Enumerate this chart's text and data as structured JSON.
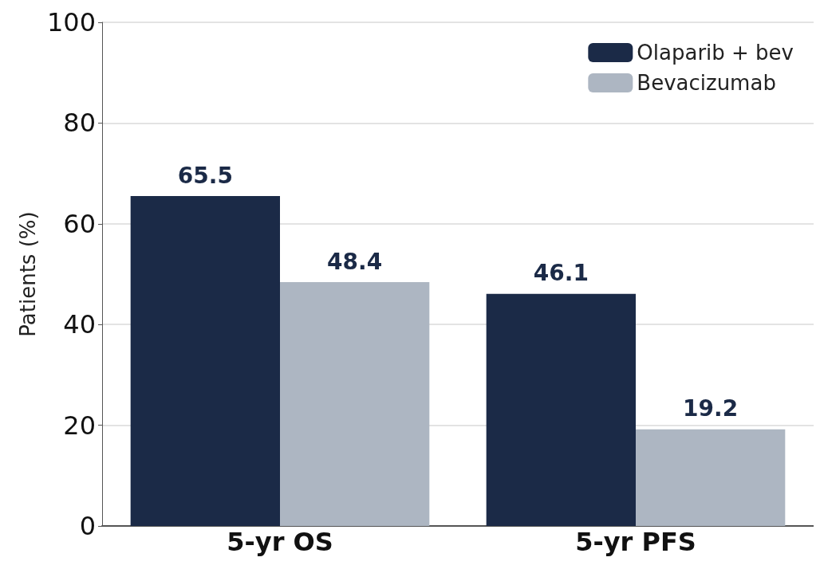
{
  "chart_data": {
    "type": "bar",
    "ylabel": "Patients (%)",
    "categories": [
      "5-yr OS",
      "5-yr PFS"
    ],
    "series": [
      {
        "name": "Olaparib + bev",
        "color": "#1b2a47",
        "values": [
          65.5,
          46.1
        ]
      },
      {
        "name": "Bevacizumab",
        "color": "#adb6c2",
        "values": [
          48.4,
          19.2
        ]
      }
    ],
    "ylim": [
      0,
      100
    ],
    "yticks": [
      0,
      20,
      40,
      60,
      80,
      100
    ],
    "grid": "y",
    "legend": "top right",
    "data_labels": true
  }
}
